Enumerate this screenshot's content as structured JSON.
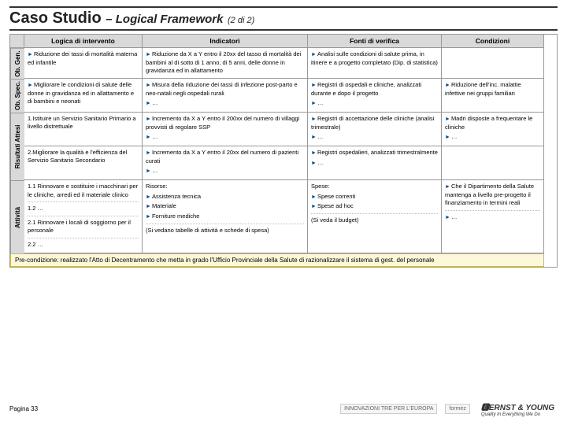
{
  "title_main": "Caso Studio",
  "title_sub": "– Logical Framework",
  "title_count": "(2 di 2)",
  "headers": {
    "c1": "Logica di intervento",
    "c2": "Indicatori",
    "c3": "Fonti di verifica",
    "c4": "Condizioni"
  },
  "rows": {
    "obgen": {
      "label": "Ob. Gen.",
      "logic": "Riduzione dei tassi di mortalità materna ed infantile",
      "indic": "Riduzione da X a Y entro il 20xx del tasso di mortalità dei bambini al di sotto di 1 anno, di 5 anni, delle donne in gravidanza ed in allattamento",
      "fonti": "Analisi sulle condizioni di salute prima, in itinere e a progetto completato (Dip. di statistica)",
      "cond": ""
    },
    "obspec": {
      "label": "Ob. Spec.",
      "logic": "Migliorare le condizioni di salute delle donne in gravidanza ed in allattamento e di bambini e neonati",
      "indic": "Misura della riduzione dei tassi di infezione post-parto e neo-natali negli ospedali rurali",
      "indic2": "…",
      "fonti": "Registri di ospedali e cliniche, analizzati durante e dopo il progetto",
      "fonti2": "…",
      "cond": "Riduzione dell'inc. malattie infettive nei gruppi familiari"
    },
    "ris1": {
      "logic": "1.Istituire un Servizio Sanitario Primario a livello distrettuale",
      "indic": "Incremento da X a Y entro il 200xx del numero di villaggi provvisti di regolare SSP",
      "indic2": "…",
      "fonti": "Registri di accettazione delle cliniche (analisi trimestrale)",
      "fonti2": "…",
      "cond": "Madri disposte a frequentare le cliniche",
      "cond2": "…"
    },
    "ris2": {
      "logic": "2.Migliorare la qualità e l'efficienza del Servizio Sanitario Secondario",
      "indic": "Incremento da X a Y entro il 20xx del numero di pazienti curati",
      "indic2": "…",
      "fonti": "Registri ospedalieri, analizzati trimestralmente",
      "fonti2": "…"
    },
    "ris_label": "Risultati Attesi",
    "att": {
      "label": "Attività",
      "logic1": "1.1 Rinnovare e sostituire i macchinari per le cliniche, arredi ed il materiale clinico",
      "logic2": "1.2 …",
      "logic3": "2.1 Rinnovare i locali di soggiorno per il personale",
      "logic4": "2.2 …",
      "indic_h": "Risorse:",
      "indic1": "Assistenza tecnica",
      "indic2": "Materiale",
      "indic3": "Forniture mediche",
      "indic4": "(Si vedano tabelle di attività e schede di spesa)",
      "fonti_h": "Spese:",
      "fonti1": "Spese correnti",
      "fonti2": "Spese ad hoc",
      "fonti4": "(Si veda il budget)",
      "cond": "Che il Dipartimento della Salute mantenga a livello pre-progetto il finanziamento in termini reali",
      "cond2": "…"
    }
  },
  "precond": "Pre-condizione: realizzato l'Atto di Decentramento che metta in grado l'Ufficio Provinciale della Salute di razionalizzare il sistema di gest. del personale",
  "footer": {
    "page": "Pagina 33",
    "logo1": "INNOVAZIONI TRE PER L'EUROPA",
    "logo2": "formez",
    "logo3": "ERNST & YOUNG",
    "logo3_tag": "Quality In Everything We Do"
  }
}
